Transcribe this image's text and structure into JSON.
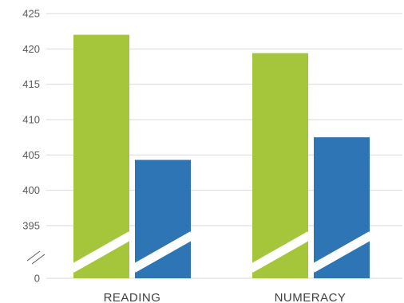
{
  "chart_data": {
    "type": "bar",
    "categories": [
      "READING",
      "NUMERACY"
    ],
    "series": [
      {
        "values": [
          422,
          419.4
        ],
        "color": "#a5c63b"
      },
      {
        "values": [
          404.3,
          407.5
        ],
        "color": "#2e75b6"
      }
    ],
    "y_ticks": [
      "0",
      "395",
      "400",
      "405",
      "410",
      "415",
      "420",
      "425"
    ],
    "ylim": [
      395,
      425
    ],
    "axis_break": true,
    "grid": true,
    "legend": "none"
  }
}
